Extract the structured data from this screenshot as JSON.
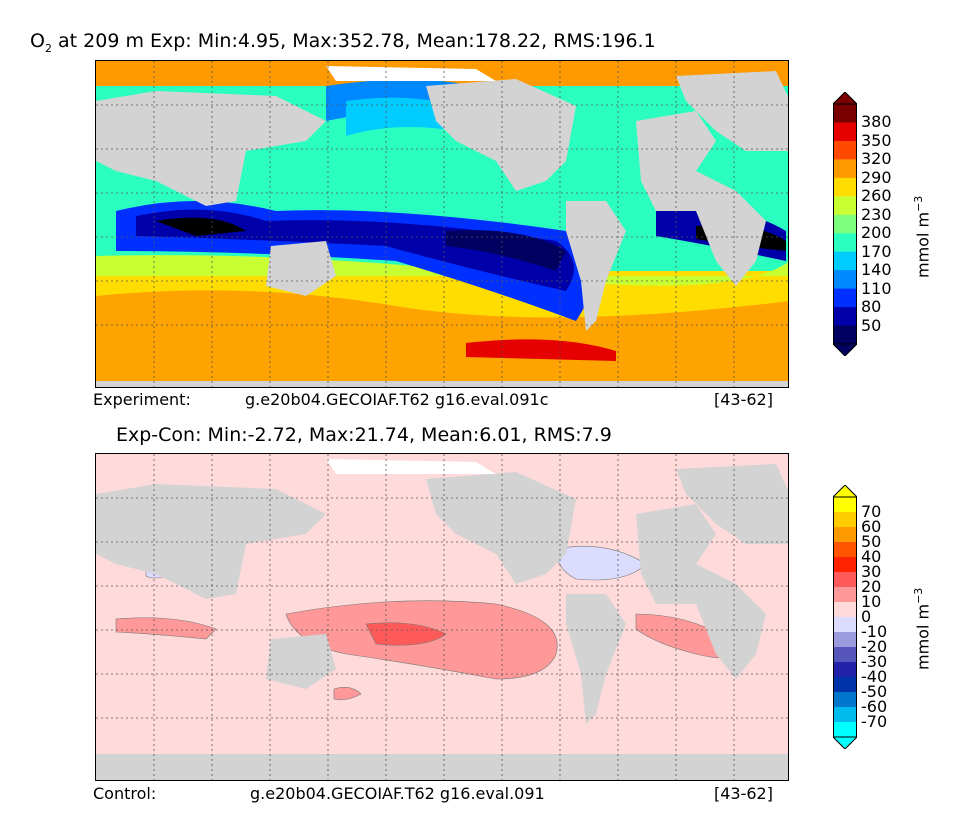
{
  "panels": {
    "top": {
      "title_prefix": "O",
      "title_sub": "2",
      "title_rest": " at 209 m Exp: Min:4.95, Max:352.78, Mean:178.22, RMS:196.1",
      "caption_left": "Experiment:",
      "caption_mid": "g.e20b04.GECOIAF.T62 g16.eval.091c",
      "caption_right": "[43-62]",
      "units": "mmol m",
      "units_sup": "−3",
      "levels": [
        "380",
        "350",
        "320",
        "290",
        "260",
        "230",
        "200",
        "170",
        "140",
        "110",
        "80",
        "50"
      ],
      "colors": [
        "#7a0000",
        "#e60000",
        "#ff4a00",
        "#ff9900",
        "#ffdd00",
        "#c8ff33",
        "#7dff7d",
        "#2affc0",
        "#00ccff",
        "#0088ff",
        "#0030ff",
        "#0000aa",
        "#000060"
      ]
    },
    "bottom": {
      "title": "Exp-Con: Min:-2.72, Max:21.74, Mean:6.01, RMS:7.9",
      "caption_left": "Control:",
      "caption_mid": "g.e20b04.GECOIAF.T62 g16.eval.091",
      "caption_right": "[43-62]",
      "units": "mmol m",
      "units_sup": "−3",
      "levels": [
        "70",
        "60",
        "50",
        "40",
        "30",
        "20",
        "10",
        "0",
        "-10",
        "-20",
        "-30",
        "-40",
        "-50",
        "-60",
        "-70"
      ],
      "colors": [
        "#ffff00",
        "#ffcc00",
        "#ff9900",
        "#ff5500",
        "#ff2200",
        "#ff5a5a",
        "#ff9999",
        "#ffdada",
        "#dcdcff",
        "#9b9bdd",
        "#5555bb",
        "#2222aa",
        "#0033aa",
        "#0077cc",
        "#00bbee",
        "#00ffff"
      ]
    }
  }
}
